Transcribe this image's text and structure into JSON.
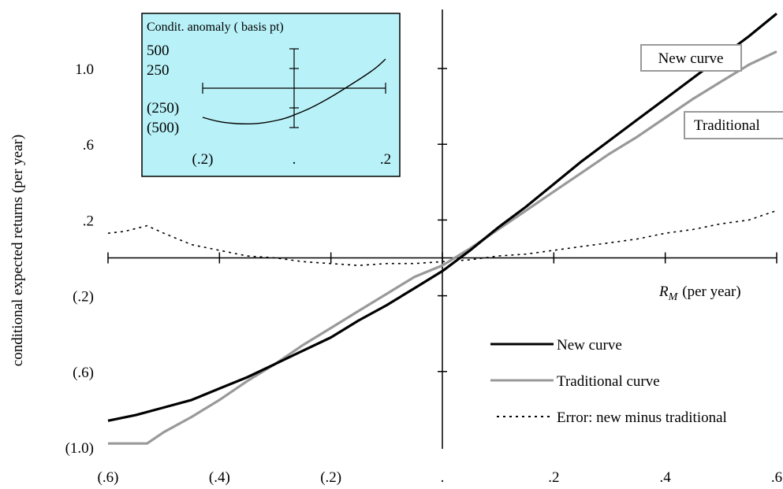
{
  "chart_data": [
    {
      "type": "line",
      "xlabel_main": "R",
      "xlabel_sub": "M",
      "xlabel_suffix": "(per year)",
      "ylabel": "conditional expected returns (per year)",
      "xlim": [
        -0.6,
        0.6
      ],
      "ylim": [
        -1.0,
        1.3
      ],
      "x_ticks": [
        {
          "value": -0.6,
          "label": "(.6)"
        },
        {
          "value": -0.4,
          "label": "(.4)"
        },
        {
          "value": -0.2,
          "label": "(.2)"
        },
        {
          "value": 0.0,
          "label": "."
        },
        {
          "value": 0.2,
          "label": ".2"
        },
        {
          "value": 0.4,
          "label": ".4"
        },
        {
          "value": 0.6,
          "label": ".6"
        }
      ],
      "y_ticks": [
        {
          "value": 1.0,
          "label": "1.0"
        },
        {
          "value": 0.6,
          "label": ".6"
        },
        {
          "value": 0.2,
          "label": ".2"
        },
        {
          "value": -0.2,
          "label": "(.2)"
        },
        {
          "value": -0.6,
          "label": "(.6)"
        },
        {
          "value": -1.0,
          "label": "(1.0)"
        }
      ],
      "grid": false,
      "legend_position": "bottom-right",
      "series": [
        {
          "name": "New curve",
          "color": "#000000",
          "style": "solid",
          "x": [
            -0.6,
            -0.55,
            -0.5,
            -0.45,
            -0.4,
            -0.35,
            -0.3,
            -0.25,
            -0.2,
            -0.15,
            -0.1,
            -0.05,
            0.0,
            0.05,
            0.1,
            0.15,
            0.2,
            0.25,
            0.3,
            0.35,
            0.4,
            0.45,
            0.5,
            0.55,
            0.6
          ],
          "y": [
            -0.86,
            -0.83,
            -0.79,
            -0.75,
            -0.69,
            -0.63,
            -0.56,
            -0.49,
            -0.42,
            -0.33,
            -0.25,
            -0.16,
            -0.07,
            0.04,
            0.16,
            0.27,
            0.39,
            0.51,
            0.62,
            0.73,
            0.84,
            0.95,
            1.06,
            1.17,
            1.29
          ]
        },
        {
          "name": "Traditional curve",
          "color": "#999999",
          "style": "solid",
          "x": [
            -0.6,
            -0.53,
            -0.5,
            -0.45,
            -0.4,
            -0.35,
            -0.3,
            -0.25,
            -0.2,
            -0.15,
            -0.1,
            -0.05,
            0.0,
            0.05,
            0.1,
            0.15,
            0.2,
            0.25,
            0.3,
            0.35,
            0.4,
            0.45,
            0.5,
            0.55,
            0.6
          ],
          "y": [
            -0.98,
            -0.98,
            -0.92,
            -0.84,
            -0.75,
            -0.65,
            -0.56,
            -0.46,
            -0.37,
            -0.28,
            -0.19,
            -0.1,
            -0.04,
            0.05,
            0.15,
            0.25,
            0.35,
            0.45,
            0.55,
            0.64,
            0.74,
            0.84,
            0.93,
            1.02,
            1.09
          ]
        },
        {
          "name": "Error: new minus traditional",
          "color": "#000000",
          "style": "dotted",
          "x": [
            -0.6,
            -0.57,
            -0.53,
            -0.5,
            -0.45,
            -0.4,
            -0.35,
            -0.3,
            -0.25,
            -0.2,
            -0.15,
            -0.1,
            -0.05,
            0.0,
            0.05,
            0.1,
            0.15,
            0.2,
            0.25,
            0.3,
            0.35,
            0.4,
            0.45,
            0.5,
            0.55,
            0.6
          ],
          "y": [
            0.13,
            0.14,
            0.17,
            0.13,
            0.07,
            0.04,
            0.01,
            0.0,
            -0.02,
            -0.03,
            -0.04,
            -0.03,
            -0.03,
            -0.02,
            -0.01,
            0.01,
            0.02,
            0.04,
            0.06,
            0.08,
            0.1,
            0.13,
            0.15,
            0.18,
            0.2,
            0.25
          ]
        }
      ],
      "callouts": [
        "New curve",
        "Traditional"
      ]
    },
    {
      "type": "line",
      "title": "Condit. anomaly ( basis pt)",
      "x_ticks": [
        {
          "value": -0.2,
          "label": "(.2)"
        },
        {
          "value": 0.0,
          "label": "."
        },
        {
          "value": 0.2,
          "label": ".2"
        }
      ],
      "y_ticks": [
        {
          "value": 500,
          "label": "500"
        },
        {
          "value": 250,
          "label": "250"
        },
        {
          "value": -250,
          "label": "(250)"
        },
        {
          "value": -500,
          "label": "(500)"
        }
      ],
      "xlim": [
        -0.2,
        0.2
      ],
      "ylim": [
        -500,
        500
      ],
      "background": "#b8f2f8",
      "series": [
        {
          "color": "#000000",
          "x": [
            -0.2,
            -0.17,
            -0.14,
            -0.11,
            -0.08,
            -0.05,
            -0.02,
            0.0,
            0.03,
            0.06,
            0.09,
            0.12,
            0.15,
            0.18,
            0.2
          ],
          "y": [
            -370,
            -420,
            -445,
            -455,
            -450,
            -425,
            -385,
            -340,
            -270,
            -180,
            -80,
            30,
            140,
            260,
            370
          ]
        }
      ]
    }
  ]
}
